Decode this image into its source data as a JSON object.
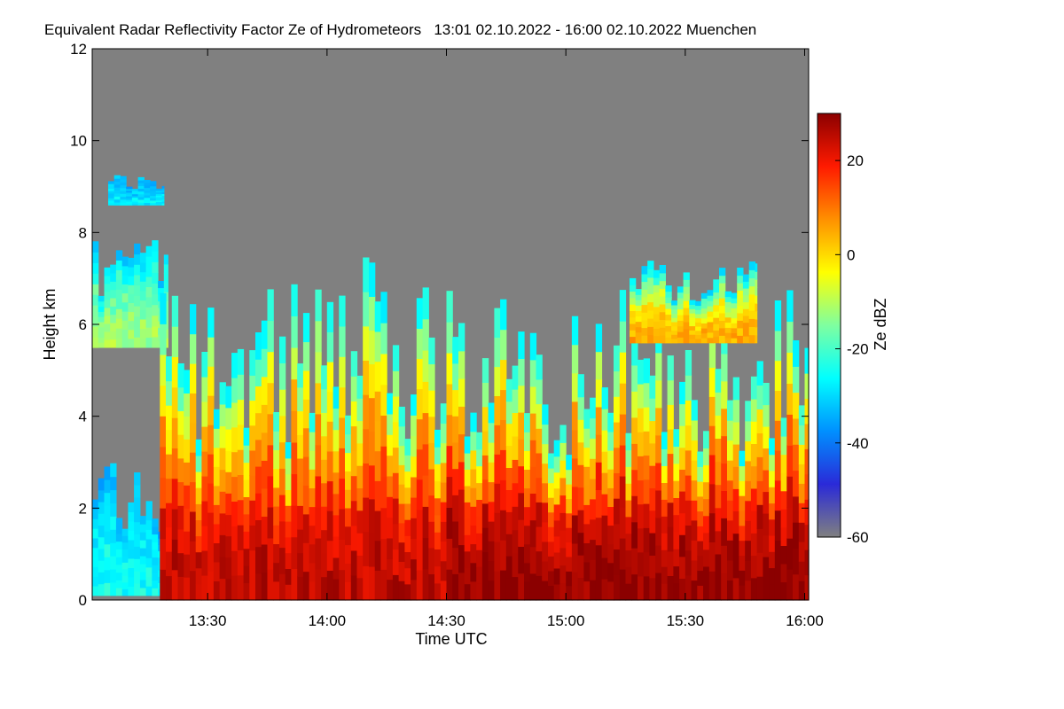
{
  "chart_data": {
    "type": "heatmap",
    "title": "Equivalent Radar Reflectivity Factor Ze of Hydrometeors   13:01 02.10.2022 - 16:00 02.10.2022 Muenchen",
    "xlabel": "Time UTC",
    "ylabel": "Height km",
    "colorbar_label": "Ze dBZ",
    "x_start": "13:01",
    "x_end": "16:00",
    "xlim_minutes_after_1300": [
      1,
      181
    ],
    "x_ticks": [
      {
        "label": "13:30",
        "minutes_after_1300": 30
      },
      {
        "label": "14:00",
        "minutes_after_1300": 60
      },
      {
        "label": "14:30",
        "minutes_after_1300": 90
      },
      {
        "label": "15:00",
        "minutes_after_1300": 120
      },
      {
        "label": "15:30",
        "minutes_after_1300": 150
      },
      {
        "label": "16:00",
        "minutes_after_1300": 180
      }
    ],
    "ylim": [
      0,
      12
    ],
    "y_ticks": [
      0,
      2,
      4,
      6,
      8,
      10,
      12
    ],
    "colorbar_range_dbz": [
      -60,
      30
    ],
    "colorbar_ticks": [
      20,
      0,
      -20,
      -40,
      -60
    ],
    "no_signal_color": "#808080",
    "colormap": [
      "#808080",
      "#2a2ad8",
      "#0090ff",
      "#00ffff",
      "#7fffa0",
      "#ffff00",
      "#ff9000",
      "#ff1a00",
      "#8b0000"
    ],
    "echo_features": [
      {
        "desc": "early low cloud/drizzle layer",
        "t_start": 1,
        "t_end": 20,
        "base_km": 0.1,
        "top_km": 3.0,
        "core_dbz": -25
      },
      {
        "desc": "upper cloud patch",
        "t_start": 1,
        "t_end": 20,
        "base_km": 5.5,
        "top_km": 7.9,
        "core_dbz": -12
      },
      {
        "desc": "high cirrus fragment",
        "t_start": 5,
        "t_end": 19,
        "base_km": 8.6,
        "top_km": 9.3,
        "core_dbz": -28
      },
      {
        "desc": "convective showers",
        "t_start": 18,
        "t_end": 90,
        "base_km": 0.0,
        "top_km": 7.6,
        "core_dbz": 22
      },
      {
        "desc": "main rain period",
        "t_start": 90,
        "t_end": 181,
        "base_km": 0.0,
        "top_km": 6.8,
        "core_dbz": 26
      },
      {
        "desc": "elevated cloud patch",
        "t_start": 136,
        "t_end": 168,
        "base_km": 5.6,
        "top_km": 7.6,
        "core_dbz": 5
      }
    ],
    "melting_layer_km": 2.4
  }
}
